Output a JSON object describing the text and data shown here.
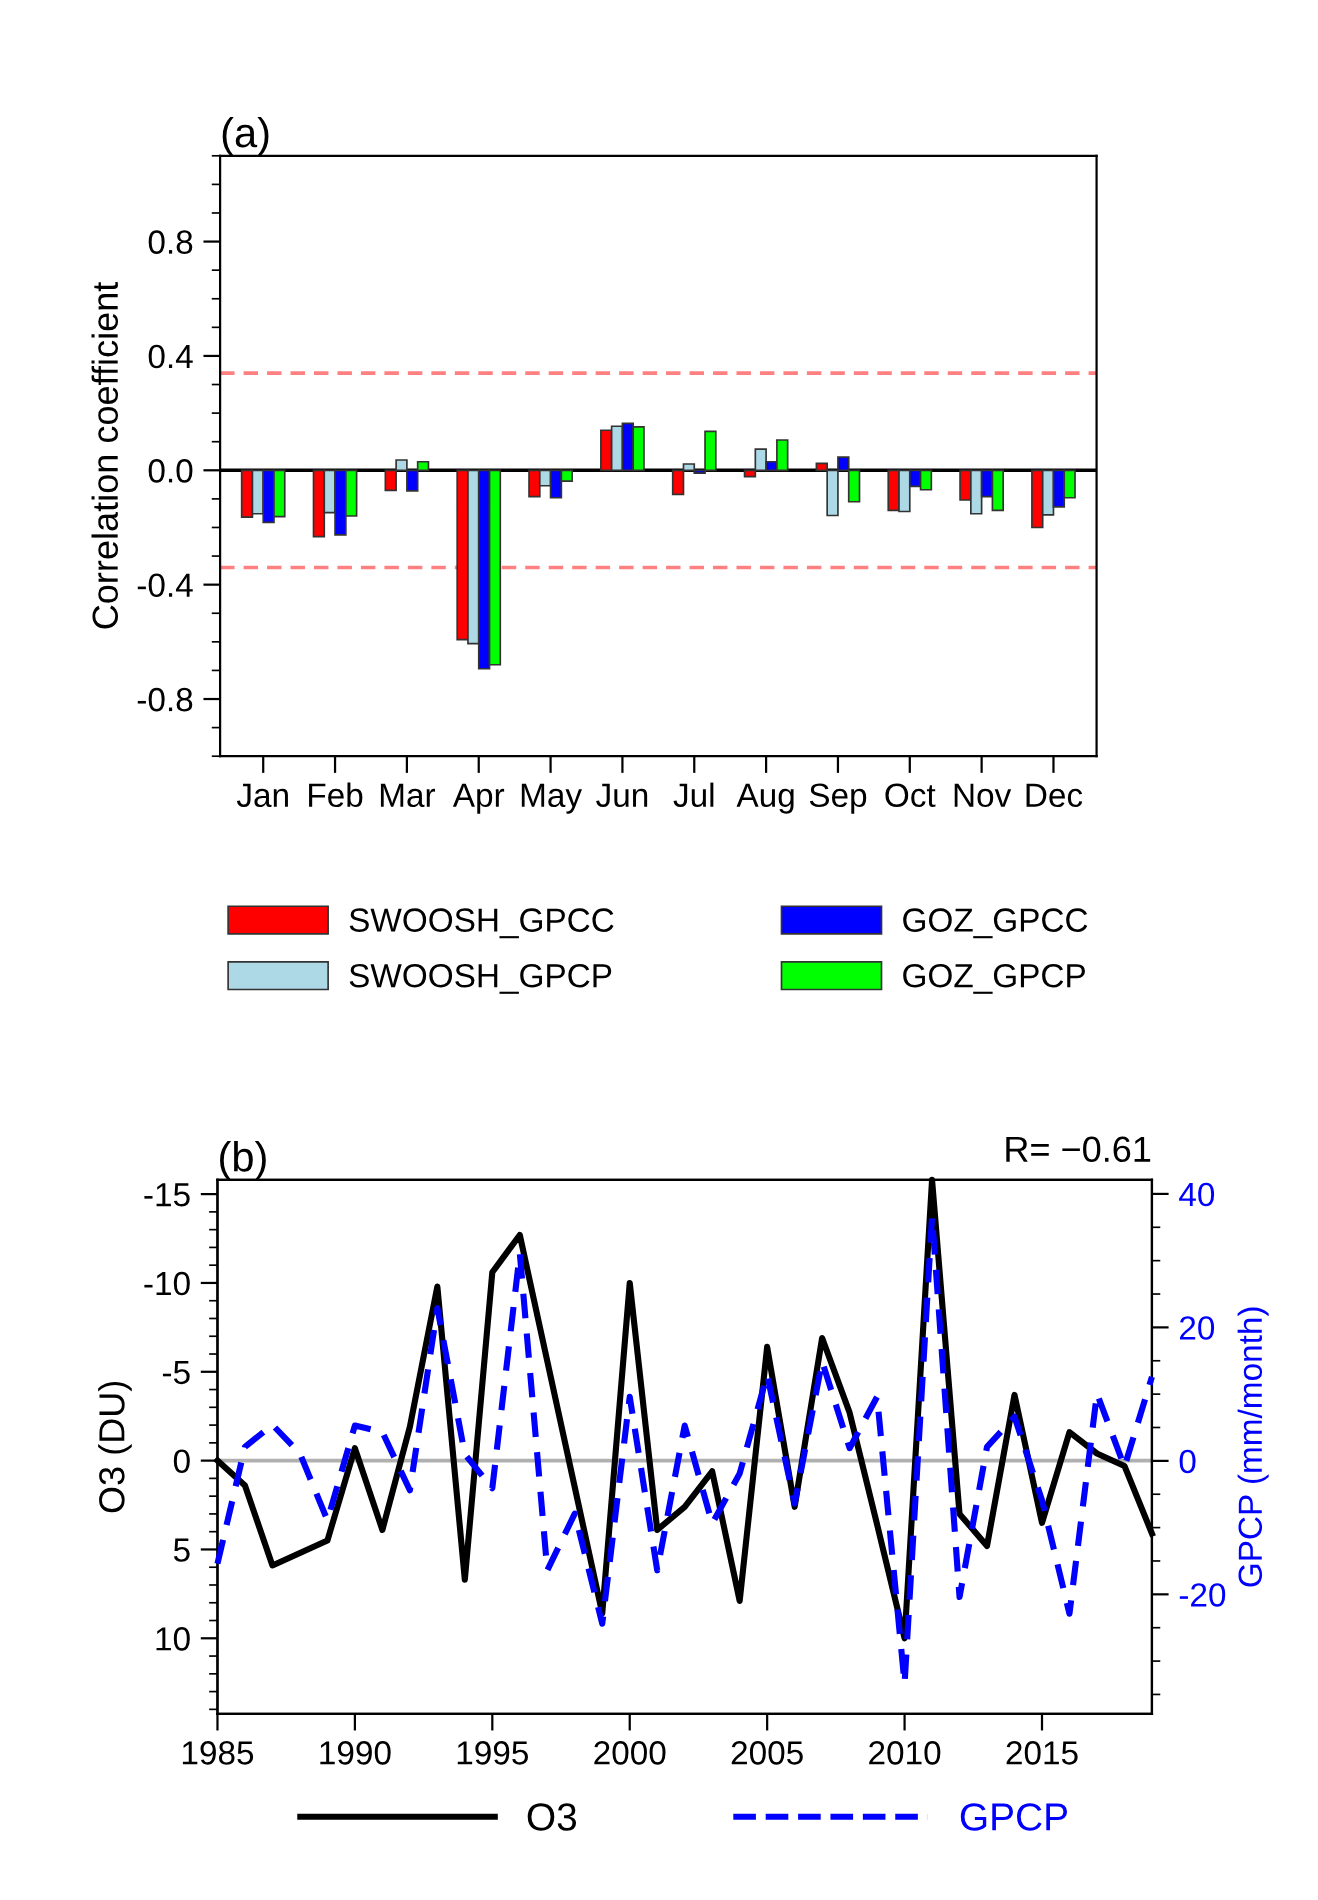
{
  "chart_data": [
    {
      "type": "bar",
      "title": "(a)",
      "ylabel": "Correlation coefficient",
      "categories": [
        "Jan",
        "Feb",
        "Mar",
        "Apr",
        "May",
        "Jun",
        "Jul",
        "Aug",
        "Sep",
        "Oct",
        "Nov",
        "Dec"
      ],
      "series": [
        {
          "name": "SWOOSH_GPCC",
          "color": "#ff0000",
          "values": [
            -0.164,
            -0.232,
            -0.07,
            -0.592,
            -0.092,
            0.14,
            -0.084,
            -0.022,
            0.024,
            -0.14,
            -0.104,
            -0.2
          ]
        },
        {
          "name": "SWOOSH_GPCP",
          "color": "#add8e6",
          "values": [
            -0.152,
            -0.148,
            0.036,
            -0.606,
            -0.054,
            0.154,
            0.022,
            0.074,
            -0.158,
            -0.144,
            -0.152,
            -0.156
          ]
        },
        {
          "name": "GOZ_GPCC",
          "color": "#0000ff",
          "values": [
            -0.182,
            -0.226,
            -0.072,
            -0.694,
            -0.096,
            0.164,
            -0.01,
            0.03,
            0.046,
            -0.056,
            -0.092,
            -0.128
          ]
        },
        {
          "name": "GOZ_GPCP",
          "color": "#00ff00",
          "values": [
            -0.162,
            -0.16,
            0.03,
            -0.68,
            -0.038,
            0.152,
            0.136,
            0.106,
            -0.11,
            -0.068,
            -0.14,
            -0.096
          ]
        }
      ],
      "ylim": [
        -1.0,
        1.1
      ],
      "yticks": [
        {
          "value": -0.8,
          "label": "-0.8"
        },
        {
          "value": -0.4,
          "label": "-0.4"
        },
        {
          "value": 0,
          "label": "0.0"
        },
        {
          "value": 0.4,
          "label": "0.4"
        },
        {
          "value": 0.8,
          "label": "0.8"
        }
      ],
      "ref_lines": [
        {
          "axis": "y",
          "value": 0.34,
          "color": "#ff8080",
          "line_style": "dashed"
        },
        {
          "axis": "y",
          "value": -0.34,
          "color": "#ff8080",
          "line_style": "dashed"
        },
        {
          "axis": "y",
          "value": 0,
          "color": "#000000",
          "line_style": "solid"
        }
      ],
      "legend": "bottom",
      "grid": false
    },
    {
      "type": "line",
      "title": "(b)",
      "ylabel": "O3 (DU)",
      "y2label": "GPCP (mm/month)",
      "x": [
        1985,
        1986,
        1987,
        1988,
        1989,
        1990,
        1991,
        1992,
        1993,
        1994,
        1995,
        1996,
        1997,
        1998,
        1999,
        2000,
        2001,
        2002,
        2003,
        2004,
        2005,
        2006,
        2007,
        2008,
        2009,
        2010,
        2011,
        2012,
        2013,
        2014,
        2015,
        2016,
        2017,
        2018,
        2019
      ],
      "series": [
        {
          "name": "O3",
          "color": "#000000",
          "line_style": "solid",
          "values": [
            0.0,
            1.4,
            5.9,
            5.2,
            4.5,
            -0.7,
            3.9,
            -1.9,
            -9.8,
            6.7,
            -10.6,
            -12.7,
            -5.6,
            1.5,
            8.6,
            -10.0,
            3.9,
            2.6,
            0.6,
            7.9,
            -6.4,
            2.6,
            -6.9,
            -2.7,
            3.6,
            10.0,
            -15.8,
            3.0,
            4.8,
            -3.7,
            3.5,
            -1.6,
            -0.4,
            0.3,
            4.1
          ]
        },
        {
          "name": "GPCP",
          "color": "#0000ff",
          "line_style": "dashed",
          "axis": "y2",
          "values": [
            -15.4,
            2.1,
            5.4,
            1.1,
            -8.9,
            5.3,
            4.3,
            -4.4,
            22.9,
            1.0,
            -4.1,
            31.1,
            -16.4,
            -7.9,
            -24.4,
            9.6,
            -16.4,
            5.3,
            -9.4,
            -1.9,
            12.9,
            -6.4,
            14.9,
            1.9,
            9.6,
            -33.4,
            36.6,
            -20.4,
            2.1,
            6.6,
            -5.9,
            -22.9,
            10.1,
            -0.9,
            12.6
          ]
        }
      ],
      "xlim": [
        1985,
        2019
      ],
      "xticks": [
        1985,
        1990,
        1995,
        2000,
        2005,
        2010,
        2015
      ],
      "ylim": [
        14.25,
        -15.8
      ],
      "yticks": [
        -15,
        -10,
        -5,
        0,
        5,
        10
      ],
      "y2lim": [
        -37.9,
        42.1
      ],
      "y2ticks": [
        -20,
        0,
        20,
        40
      ],
      "ref_lines": [
        {
          "axis": "y",
          "value": 0,
          "color": "#b0b0b0",
          "line_style": "solid"
        }
      ],
      "annotations": [
        "R= −0.61"
      ],
      "legend": "bottom",
      "grid": false,
      "marker": "none"
    }
  ]
}
